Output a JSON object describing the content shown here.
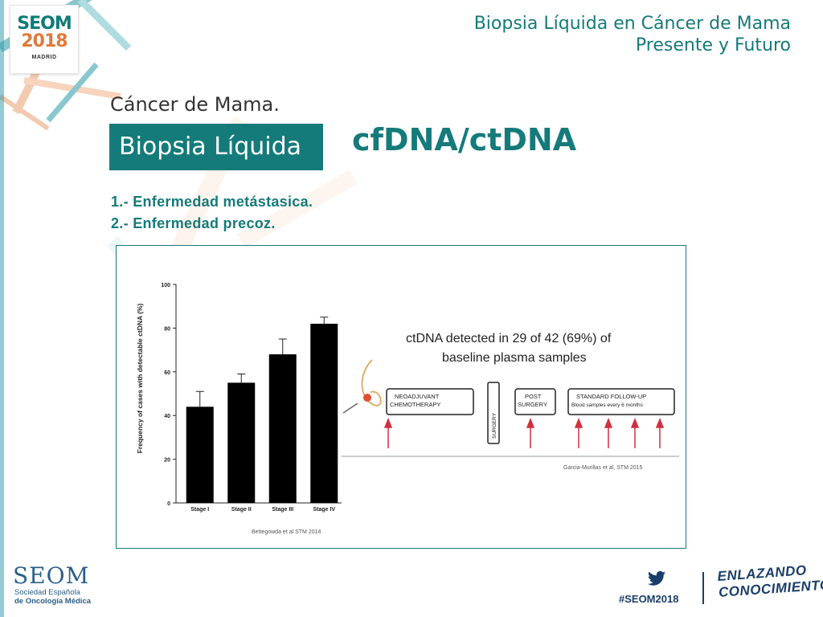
{
  "header": {
    "title_line1": "Biopsia Líquida en Cáncer de Mama",
    "title_line2": "Presente y Futuro"
  },
  "logo": {
    "name": "SEOM",
    "year": "2018",
    "city": "MADRID"
  },
  "slide": {
    "subtitle": "Cáncer de Mama.",
    "badge": "Biopsia Líquida",
    "title": "cfDNA/ctDNA",
    "list": [
      "1.- Enfermedad metástasica.",
      "2.- Enfermedad precoz."
    ]
  },
  "figure": {
    "chart_data": {
      "type": "bar",
      "categories": [
        "Stage I",
        "Stage II",
        "Stage III",
        "Stage IV"
      ],
      "values": [
        44,
        55,
        68,
        82
      ],
      "errors": [
        7,
        4,
        7,
        3
      ],
      "ylabel": "Frequency of cases with detectable ctDNA (%)",
      "ylim": [
        0,
        100
      ],
      "yticks": [
        "0",
        "20",
        "40",
        "60",
        "80",
        "100"
      ],
      "source": "Bettegowda et al STM 2014",
      "bar_color": "#000000"
    },
    "headline_line1": "ctDNA detected in 29 of 42 (69%) of",
    "headline_line2": "baseline plasma samples",
    "boxes": {
      "neoadjuvant_line1": "NEOADJUVANT",
      "neoadjuvant_line2": "CHEMOTHERAPY",
      "surgery": "SURGERY",
      "post_line1": "POST",
      "post_line2": "SURGERY",
      "followup_line1": "STANDARD FOLLOW-UP",
      "followup_line2": "Blood samples every 6 months"
    },
    "source2": "Garcia-Murillas et al, STM 2015"
  },
  "footer": {
    "brand": "SEOM",
    "sub_line1": "Sociedad Española",
    "sub_line2": "de Oncología Médica",
    "hashtag": "#SEOM2018",
    "tagline_line1": "ENLAZANDO",
    "tagline_line2": "CONOCIMIENTO"
  },
  "colors": {
    "teal": "#157a7a",
    "navy": "#1a3e6a",
    "orange": "#e07a3a"
  }
}
